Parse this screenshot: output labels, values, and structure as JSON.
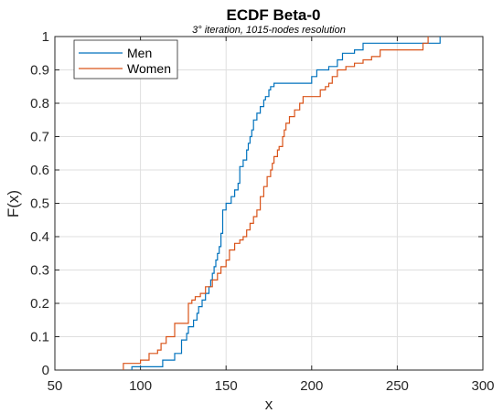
{
  "chart_data": {
    "type": "line",
    "step": true,
    "title": "ECDF Beta-0",
    "subtitle": "3° iteration, 1015-nodes resolution",
    "xlabel": "x",
    "ylabel": "F(x)",
    "xlim": [
      50,
      300
    ],
    "ylim": [
      0,
      1
    ],
    "xticks": [
      50,
      100,
      150,
      200,
      250,
      300
    ],
    "yticks": [
      0,
      0.1,
      0.2,
      0.3,
      0.4,
      0.5,
      0.6,
      0.7,
      0.8,
      0.9,
      1
    ],
    "xtick_labels": [
      "50",
      "100",
      "150",
      "200",
      "250",
      "300"
    ],
    "ytick_labels": [
      "0",
      "0.1",
      "0.2",
      "0.3",
      "0.4",
      "0.5",
      "0.6",
      "0.7",
      "0.8",
      "0.9",
      "1"
    ],
    "grid": true,
    "legend_position": "top-left",
    "series": [
      {
        "name": "Men",
        "color": "#0072BD",
        "x": [
          95,
          113,
          120,
          124,
          127,
          128,
          131,
          133,
          134,
          136,
          138,
          140,
          141,
          142,
          143,
          144,
          145,
          146,
          147,
          148,
          150,
          153,
          155,
          157,
          158,
          160,
          162,
          163,
          164,
          165,
          166,
          168,
          170,
          172,
          173,
          175,
          176,
          178,
          180,
          182,
          185,
          188,
          200,
          203,
          210,
          215,
          218,
          225,
          230,
          270,
          275
        ],
        "y": [
          0.01,
          0.03,
          0.05,
          0.09,
          0.11,
          0.13,
          0.15,
          0.17,
          0.19,
          0.21,
          0.23,
          0.25,
          0.27,
          0.29,
          0.31,
          0.33,
          0.35,
          0.37,
          0.41,
          0.48,
          0.5,
          0.52,
          0.54,
          0.56,
          0.61,
          0.63,
          0.66,
          0.68,
          0.7,
          0.72,
          0.75,
          0.77,
          0.79,
          0.81,
          0.82,
          0.84,
          0.85,
          0.86,
          0.86,
          0.86,
          0.86,
          0.86,
          0.88,
          0.9,
          0.91,
          0.93,
          0.95,
          0.96,
          0.98,
          0.98,
          1.0
        ]
      },
      {
        "name": "Women",
        "color": "#D95319",
        "x": [
          90,
          100,
          105,
          110,
          112,
          115,
          120,
          128,
          130,
          132,
          135,
          138,
          142,
          145,
          147,
          150,
          152,
          155,
          158,
          160,
          162,
          164,
          166,
          168,
          170,
          172,
          174,
          176,
          177,
          178,
          180,
          181,
          183,
          184,
          185,
          187,
          190,
          193,
          195,
          200,
          205,
          208,
          210,
          212,
          215,
          220,
          225,
          230,
          235,
          240,
          265,
          268
        ],
        "y": [
          0.02,
          0.03,
          0.05,
          0.06,
          0.08,
          0.1,
          0.14,
          0.2,
          0.21,
          0.22,
          0.23,
          0.25,
          0.27,
          0.29,
          0.31,
          0.33,
          0.36,
          0.38,
          0.39,
          0.4,
          0.42,
          0.44,
          0.46,
          0.48,
          0.52,
          0.55,
          0.58,
          0.6,
          0.62,
          0.64,
          0.66,
          0.67,
          0.7,
          0.72,
          0.74,
          0.76,
          0.78,
          0.8,
          0.82,
          0.82,
          0.84,
          0.85,
          0.86,
          0.88,
          0.9,
          0.91,
          0.92,
          0.93,
          0.94,
          0.96,
          0.98,
          1.0
        ]
      }
    ]
  }
}
